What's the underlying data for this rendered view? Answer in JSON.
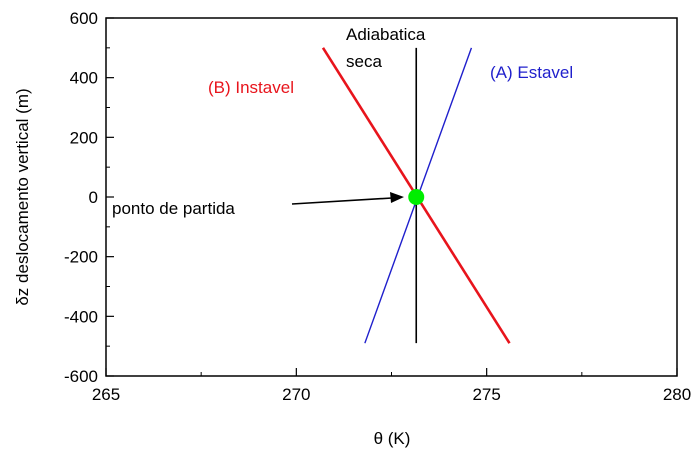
{
  "chart_data": {
    "type": "line",
    "xlabel": "θ (K)",
    "ylabel": "δz deslocamento vertical (m)",
    "xlim": [
      265,
      280
    ],
    "ylim": [
      -600,
      600
    ],
    "xticks": [
      265,
      270,
      275,
      280
    ],
    "yticks": [
      -600,
      -400,
      -200,
      0,
      200,
      400,
      600
    ],
    "grid": false,
    "series": [
      {
        "name": "(B) Instavel",
        "color": "#e8141c",
        "x": [
          270.7,
          275.6
        ],
        "y": [
          500,
          -490
        ]
      },
      {
        "name": "(A) Estavel",
        "color": "#1f1fcc",
        "x": [
          271.8,
          274.6
        ],
        "y": [
          -490,
          500
        ]
      },
      {
        "name": "Adiabatica seca",
        "color": "#000000",
        "x": [
          273.15,
          273.15
        ],
        "y": [
          -490,
          500
        ]
      }
    ],
    "point": {
      "label": "ponto de partida",
      "x": 273.15,
      "y": 0,
      "color": "#00ee00"
    },
    "annotations": {
      "instavel": "(B) Instavel",
      "estavel": "(A) Estavel",
      "adiabatica_line1": "Adiabatica",
      "adiabatica_line2": "seca",
      "start": "ponto de partida"
    }
  }
}
